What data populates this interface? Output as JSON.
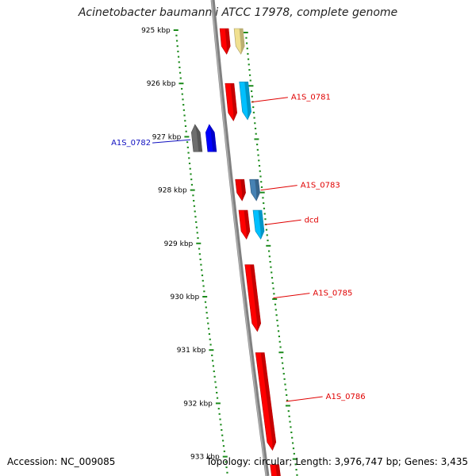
{
  "title": "Acinetobacter baumannii ATCC 17978, complete genome",
  "accession_label": "Accession: NC_009085",
  "topology": "Topology: circular;",
  "length": "Length: 3,976,747 bp;",
  "genes": "Genes: 3,435",
  "colors": {
    "backbone": "#808080",
    "tick": "#1a8a1a",
    "forward_label": "#e00000",
    "reverse_label": "#1010c0"
  },
  "kbp_labels": [
    "925 kbp",
    "926 kbp",
    "927 kbp",
    "928 kbp",
    "929 kbp",
    "930 kbp",
    "931 kbp",
    "932 kbp",
    "933 kbp"
  ],
  "genes_list": [
    {
      "label": "",
      "strand": "+",
      "track": 0,
      "start": 924.97,
      "end": 925.45,
      "color": "#ff0000"
    },
    {
      "label": "",
      "strand": "+",
      "track": 1,
      "start": 924.97,
      "end": 925.45,
      "color": "#f0e090"
    },
    {
      "label": "A1S_0781",
      "strand": "+",
      "track": 0,
      "start": 926.0,
      "end": 926.7,
      "color": "#ff0000"
    },
    {
      "label": "",
      "strand": "+",
      "track": 1,
      "start": 925.97,
      "end": 926.68,
      "color": "#00c0ff"
    },
    {
      "label": "",
      "strand": "-",
      "track": -1,
      "start": 926.77,
      "end": 927.28,
      "color": "#6e6e6e"
    },
    {
      "label": "A1S_0782",
      "strand": "-",
      "track": 0,
      "start": 926.77,
      "end": 927.28,
      "color": "#0000ff"
    },
    {
      "label": "",
      "strand": "+",
      "track": 0,
      "start": 927.8,
      "end": 928.2,
      "color": "#ee0000"
    },
    {
      "label": "A1S_0783",
      "strand": "+",
      "track": 1,
      "start": 927.8,
      "end": 928.2,
      "color": "#4682b4"
    },
    {
      "label": "",
      "strand": "+",
      "track": 0,
      "start": 928.38,
      "end": 928.92,
      "color": "#ff0000"
    },
    {
      "label": "dcd",
      "strand": "+",
      "track": 1,
      "start": 928.38,
      "end": 928.92,
      "color": "#00c0ff"
    },
    {
      "label": "A1S_0785",
      "strand": "+",
      "track": 0,
      "start": 929.4,
      "end": 930.65,
      "color": "#ff0000"
    },
    {
      "label": "A1S_0786",
      "strand": "+",
      "track": 0,
      "start": 931.05,
      "end": 932.88,
      "color": "#ff0000"
    },
    {
      "label": "",
      "strand": "+",
      "track": 0,
      "start": 933.15,
      "end": 933.6,
      "color": "#ff0000"
    }
  ]
}
